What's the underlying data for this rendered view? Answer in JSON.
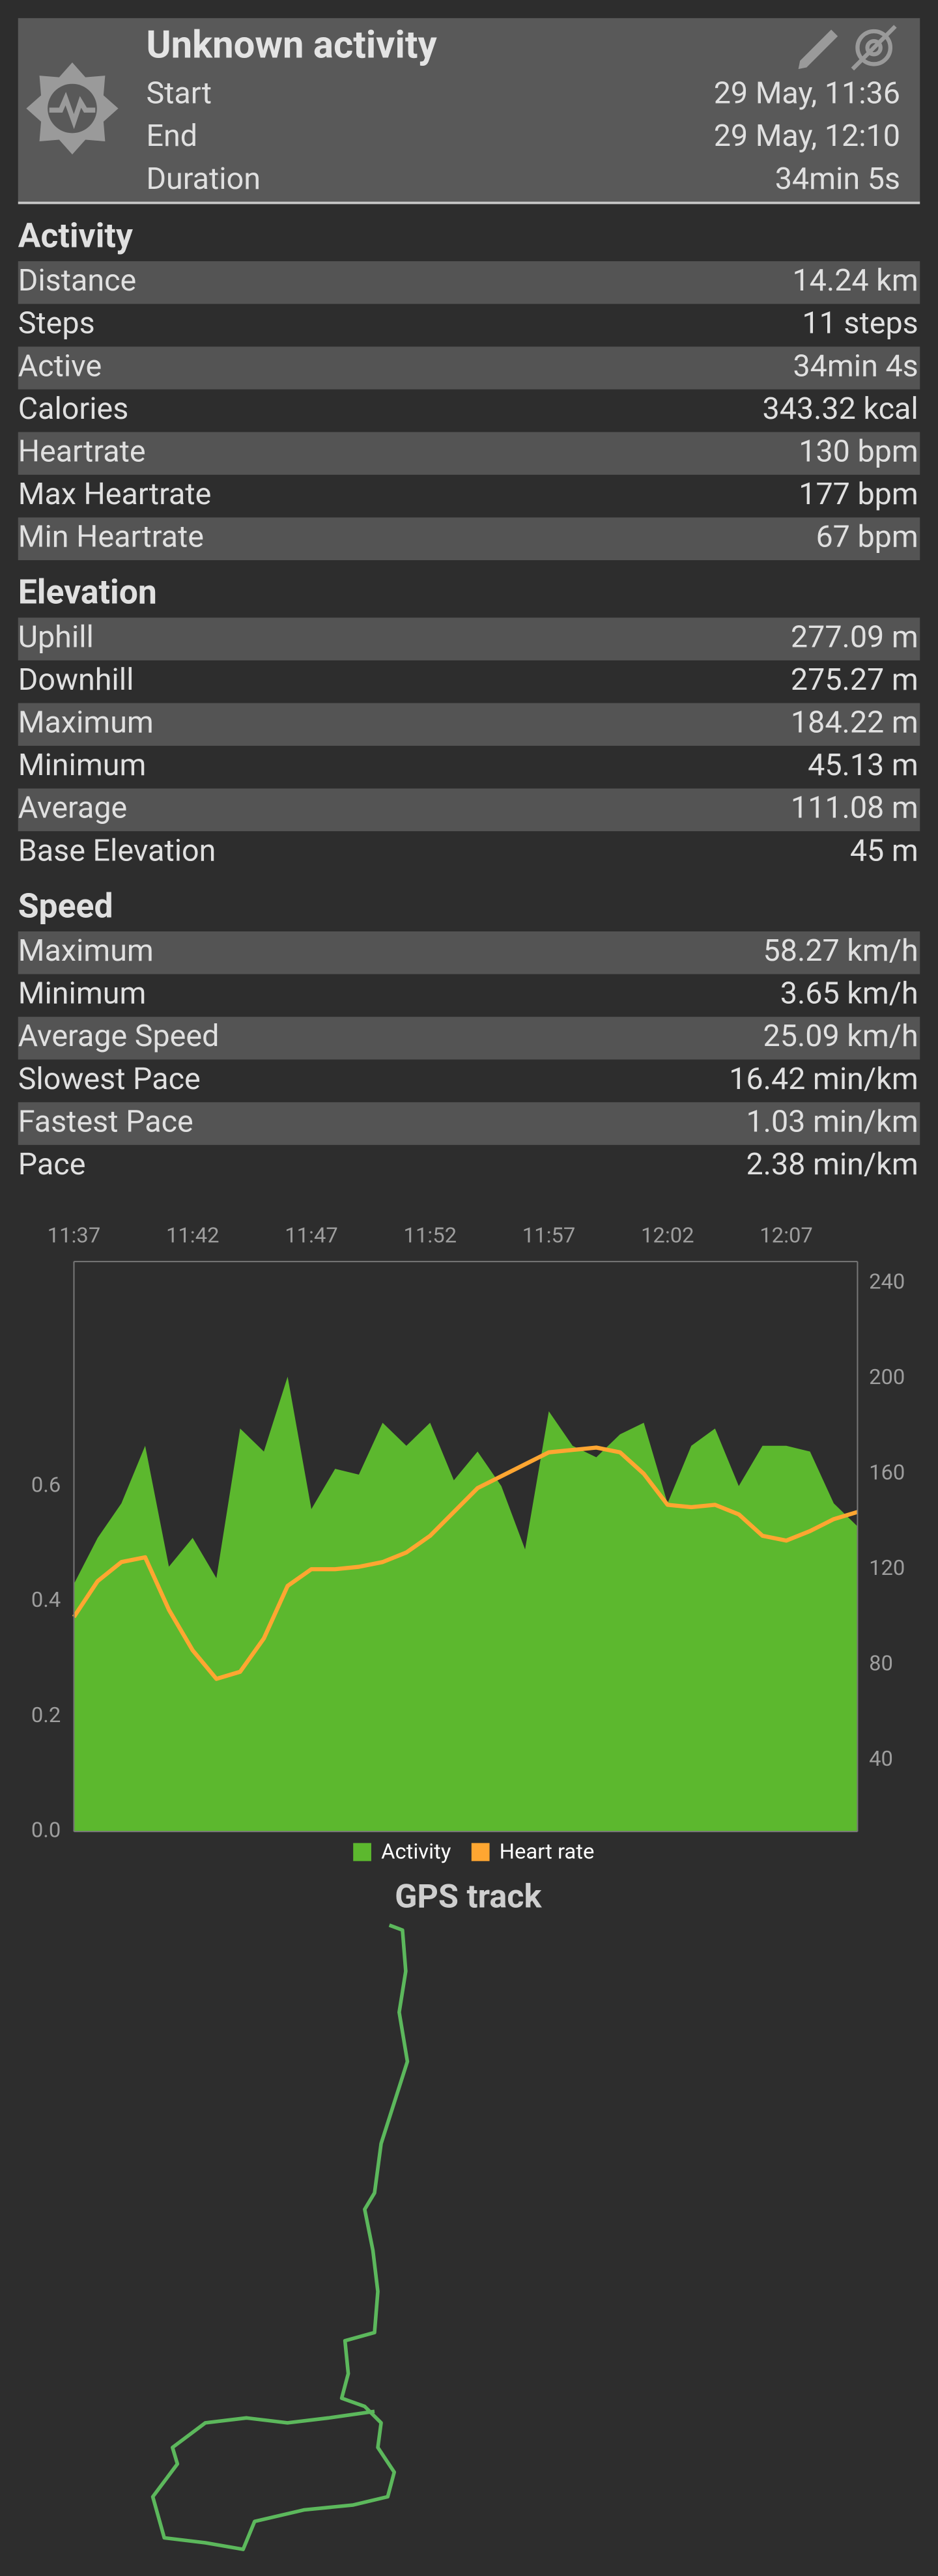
{
  "header": {
    "title": "Unknown activity",
    "rows": [
      [
        "Start",
        "29 May, 11:36"
      ],
      [
        "End",
        "29 May, 12:10"
      ],
      [
        "Duration",
        "34min 5s"
      ]
    ]
  },
  "sections": [
    {
      "title": "Activity",
      "rows": [
        [
          "Distance",
          "14.24 km"
        ],
        [
          "Steps",
          "11 steps"
        ],
        [
          "Active",
          "34min 4s"
        ],
        [
          "Calories",
          "343.32 kcal"
        ],
        [
          "Heartrate",
          "130 bpm"
        ],
        [
          "Max Heartrate",
          "177 bpm"
        ],
        [
          "Min Heartrate",
          "67 bpm"
        ]
      ]
    },
    {
      "title": "Elevation",
      "rows": [
        [
          "Uphill",
          "277.09 m"
        ],
        [
          "Downhill",
          "275.27 m"
        ],
        [
          "Maximum",
          "184.22 m"
        ],
        [
          "Minimum",
          "45.13 m"
        ],
        [
          "Average",
          "111.08 m"
        ],
        [
          "Base Elevation",
          "45 m"
        ]
      ]
    },
    {
      "title": "Speed",
      "rows": [
        [
          "Maximum",
          "58.27 km/h"
        ],
        [
          "Minimum",
          "3.65 km/h"
        ],
        [
          "Average Speed",
          "25.09 km/h"
        ],
        [
          "Slowest Pace",
          "16.42 min/km"
        ],
        [
          "Fastest Pace",
          "1.03 min/km"
        ],
        [
          "Pace",
          "2.38 min/km"
        ]
      ]
    }
  ],
  "chart_data": {
    "type": "area-line",
    "x": [
      697,
      698,
      699,
      700,
      701,
      702,
      703,
      704,
      705,
      706,
      707,
      708,
      709,
      710,
      711,
      712,
      713,
      714,
      715,
      716,
      717,
      718,
      719,
      720,
      721,
      722,
      723,
      724,
      725,
      726,
      727,
      728,
      729,
      730
    ],
    "xlim": [
      697,
      730
    ],
    "xticks": [
      {
        "value": 697,
        "label": "11:37"
      },
      {
        "value": 702,
        "label": "11:42"
      },
      {
        "value": 707,
        "label": "11:47"
      },
      {
        "value": 712,
        "label": "11:52"
      },
      {
        "value": 717,
        "label": "11:57"
      },
      {
        "value": 722,
        "label": "12:02"
      },
      {
        "value": 727,
        "label": "12:07"
      }
    ],
    "ylim": [
      0,
      0.99
    ],
    "yticks": [
      {
        "value": 0,
        "label": "0.0"
      },
      {
        "value": 0.2,
        "label": "0.2"
      },
      {
        "value": 0.4,
        "label": "0.4"
      },
      {
        "value": 0.6,
        "label": "0.6"
      }
    ],
    "y2lim": [
      10,
      249
    ],
    "y2ticks": [
      40,
      80,
      120,
      160,
      200,
      240
    ],
    "legend": "bottom",
    "series": [
      {
        "name": "Activity",
        "type": "area",
        "color": "#5cb82e",
        "values": [
          0.43,
          0.51,
          0.57,
          0.67,
          0.46,
          0.51,
          0.44,
          0.7,
          0.66,
          0.79,
          0.56,
          0.63,
          0.62,
          0.71,
          0.67,
          0.71,
          0.61,
          0.66,
          0.6,
          0.49,
          0.73,
          0.67,
          0.65,
          0.69,
          0.71,
          0.57,
          0.67,
          0.7,
          0.6,
          0.67,
          0.67,
          0.66,
          0.57,
          0.53
        ]
      },
      {
        "name": "Heart rate",
        "type": "line",
        "axis": "y2",
        "color": "#ffa631",
        "values": [
          100,
          115,
          123,
          125,
          103,
          86,
          74,
          77,
          91,
          113,
          120,
          120,
          121,
          123,
          127,
          134,
          144,
          154,
          159,
          164,
          169,
          170,
          171,
          169,
          160,
          147,
          146,
          147,
          143,
          134,
          132,
          136,
          141,
          144
        ]
      }
    ]
  },
  "gps": {
    "title": "GPS track"
  }
}
